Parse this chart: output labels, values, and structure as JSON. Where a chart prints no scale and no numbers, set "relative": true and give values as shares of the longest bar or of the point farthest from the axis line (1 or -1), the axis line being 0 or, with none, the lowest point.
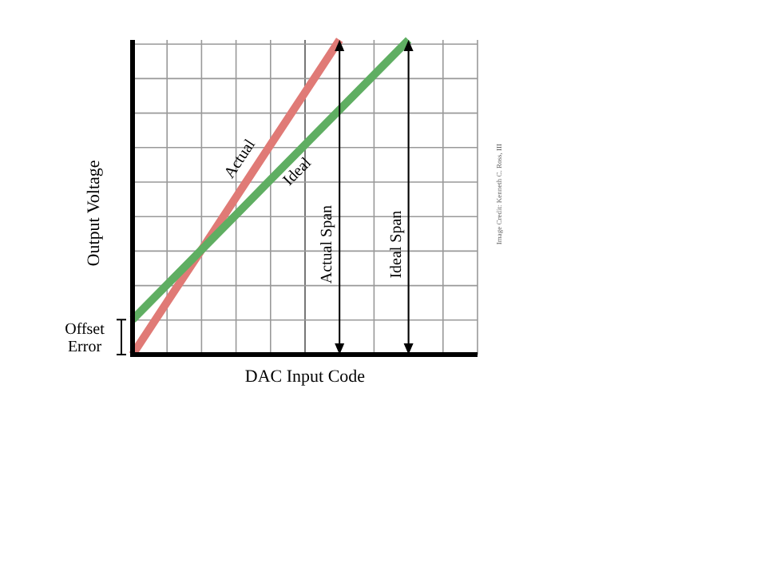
{
  "chart_data": {
    "type": "line",
    "relative": true,
    "xlabel": "DAC Input Code",
    "ylabel": "Output Voltage",
    "grid": true,
    "marker": "none",
    "line_style": "solid",
    "categories": [
      null,
      null,
      null,
      null,
      null,
      null,
      null,
      null,
      null,
      null,
      null
    ],
    "series": [
      {
        "name": "Actual",
        "color": "#e07a76",
        "values": [
          0,
          0.167,
          0.333,
          0.5,
          0.667,
          0.833,
          1,
          null,
          null,
          null,
          null
        ]
      },
      {
        "name": "Ideal",
        "color": "#5fae62",
        "values": [
          0.111,
          0.222,
          0.333,
          0.444,
          0.556,
          0.667,
          0.778,
          0.889,
          1,
          null,
          null
        ]
      }
    ],
    "annotations": [
      "Actual Span",
      "Ideal Span",
      "Offset Error",
      "Image Credit: Kenneth C. Ross, III"
    ]
  }
}
